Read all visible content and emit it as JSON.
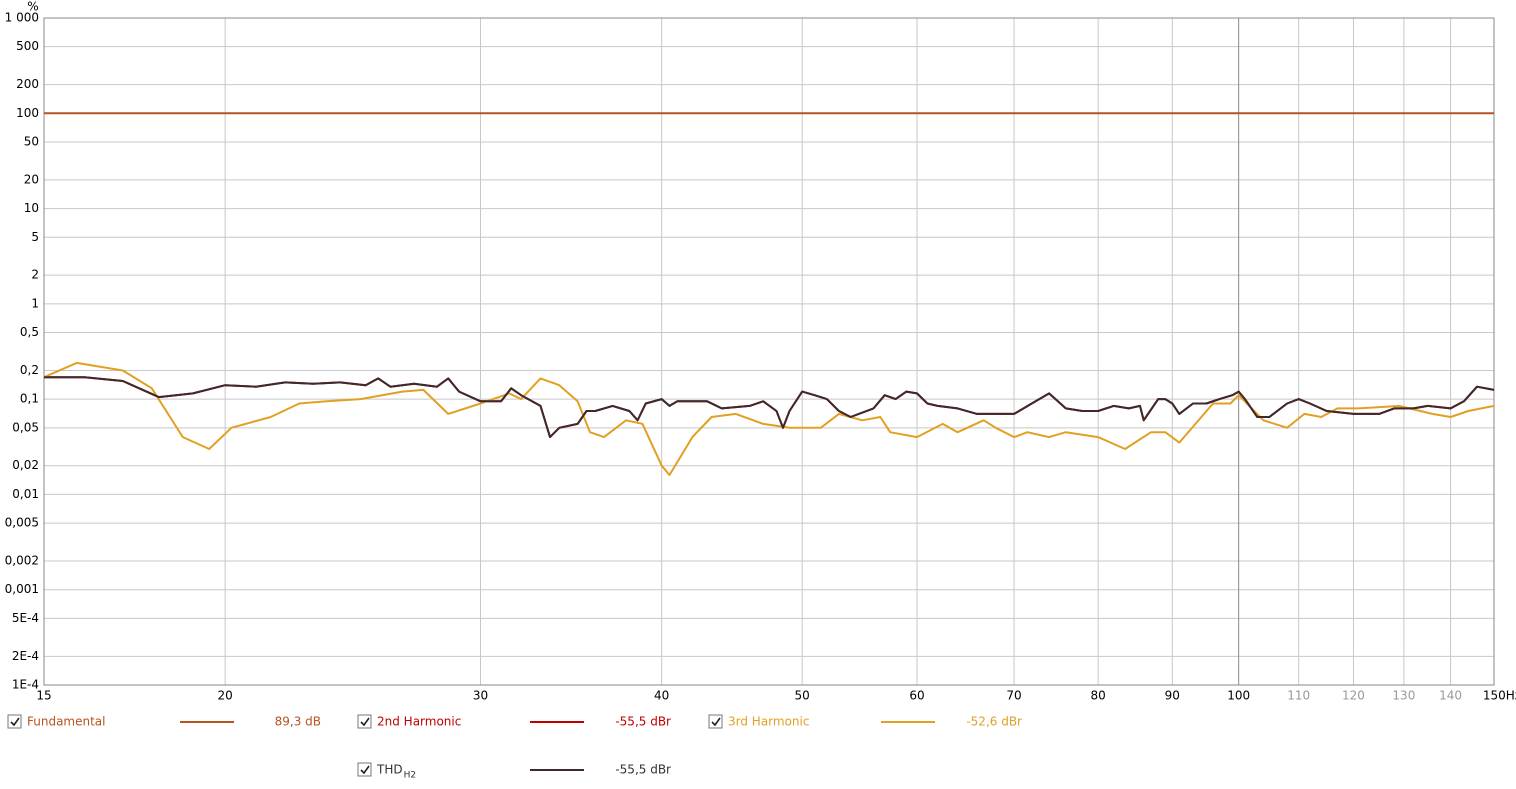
{
  "chart_data": {
    "type": "line",
    "y_label": "%",
    "log_x": true,
    "log_y": true,
    "grid": true,
    "xlim": [
      15,
      150
    ],
    "ylim": [
      0.0001,
      1000
    ],
    "xticks": [
      15,
      20,
      30,
      40,
      50,
      60,
      70,
      80,
      90,
      100,
      110,
      120,
      130,
      140,
      {
        "value": 150,
        "label": "150Hz"
      }
    ],
    "yticks": [
      {
        "value": 1000,
        "label": "1 000"
      },
      500,
      200,
      100,
      50,
      20,
      10,
      5,
      2,
      1,
      {
        "value": 0.5,
        "label": "0,5"
      },
      {
        "value": 0.2,
        "label": "0,2"
      },
      {
        "value": 0.1,
        "label": "0,1"
      },
      {
        "value": 0.05,
        "label": "0,05"
      },
      {
        "value": 0.02,
        "label": "0,02"
      },
      {
        "value": 0.01,
        "label": "0,01"
      },
      {
        "value": 0.005,
        "label": "0,005"
      },
      {
        "value": 0.002,
        "label": "0,002"
      },
      {
        "value": 0.001,
        "label": "0,001"
      },
      {
        "value": 0.0005,
        "label": "5E-4"
      },
      {
        "value": 0.0002,
        "label": "2E-4"
      },
      {
        "value": 0.0001,
        "label": "1E-4"
      }
    ],
    "series": [
      {
        "name": "Fundamental",
        "color": "#b4541e",
        "legend_value": "89,3 dB",
        "x": [
          15,
          150
        ],
        "values": [
          100,
          100
        ]
      },
      {
        "name": "2nd Harmonic",
        "color": "#c00000",
        "legend_value": "-55,5 dBr",
        "x": [
          15,
          16,
          17,
          18,
          19,
          20,
          21,
          22,
          23,
          24,
          25,
          25.5,
          26,
          27,
          28,
          28.5,
          29,
          30,
          31,
          31.5,
          32,
          33,
          33.5,
          34,
          35,
          35.5,
          36,
          37,
          38,
          38.5,
          39,
          40,
          40.5,
          41,
          43,
          44,
          46,
          47,
          48,
          48.5,
          49,
          50,
          51,
          52,
          53,
          54,
          56,
          57,
          58,
          59,
          60,
          61,
          62,
          64,
          66,
          68,
          70,
          72,
          74,
          76,
          78,
          80,
          82,
          84,
          85.5,
          86,
          88,
          89,
          90,
          91,
          93,
          95,
          97,
          99,
          100,
          101,
          103,
          105,
          108,
          110,
          112,
          115,
          120,
          125,
          128,
          132,
          135,
          140,
          143,
          146,
          150
        ],
        "values": [
          0.17,
          0.17,
          0.155,
          0.105,
          0.115,
          0.14,
          0.135,
          0.15,
          0.145,
          0.15,
          0.14,
          0.165,
          0.135,
          0.145,
          0.135,
          0.165,
          0.12,
          0.095,
          0.095,
          0.13,
          0.11,
          0.085,
          0.04,
          0.05,
          0.055,
          0.075,
          0.075,
          0.085,
          0.075,
          0.06,
          0.09,
          0.1,
          0.085,
          0.095,
          0.095,
          0.08,
          0.085,
          0.095,
          0.075,
          0.05,
          0.075,
          0.12,
          0.11,
          0.1,
          0.075,
          0.065,
          0.08,
          0.11,
          0.1,
          0.12,
          0.115,
          0.09,
          0.085,
          0.08,
          0.07,
          0.07,
          0.07,
          0.09,
          0.115,
          0.08,
          0.075,
          0.075,
          0.085,
          0.08,
          0.085,
          0.06,
          0.1,
          0.1,
          0.09,
          0.07,
          0.09,
          0.09,
          0.1,
          0.11,
          0.12,
          0.1,
          0.065,
          0.065,
          0.09,
          0.1,
          0.09,
          0.075,
          0.07,
          0.07,
          0.08,
          0.08,
          0.085,
          0.08,
          0.095,
          0.135,
          0.125
        ]
      },
      {
        "name": "3rd Harmonic",
        "color": "#e2a023",
        "legend_value": "-52,6 dBr",
        "x": [
          15,
          15.8,
          17,
          17.8,
          18.7,
          19.5,
          20.2,
          21.5,
          22.5,
          23.5,
          24.8,
          26.5,
          27.4,
          28.5,
          30,
          31.4,
          32,
          33,
          34,
          35,
          35.7,
          36.5,
          37.8,
          38.8,
          40,
          40.5,
          42,
          43.3,
          45,
          47,
          49,
          51.5,
          53,
          55,
          56.6,
          57.5,
          60,
          62.5,
          64,
          66.7,
          68,
          70,
          71.5,
          74,
          76,
          80,
          83.5,
          87,
          89,
          91,
          96,
          98.7,
          100,
          104,
          108,
          111,
          114,
          117,
          121,
          129,
          136,
          140,
          144,
          150
        ],
        "values": [
          0.17,
          0.24,
          0.2,
          0.13,
          0.04,
          0.03,
          0.05,
          0.065,
          0.09,
          0.095,
          0.1,
          0.12,
          0.125,
          0.07,
          0.09,
          0.115,
          0.1,
          0.165,
          0.14,
          0.095,
          0.045,
          0.04,
          0.06,
          0.055,
          0.02,
          0.016,
          0.04,
          0.065,
          0.07,
          0.055,
          0.05,
          0.05,
          0.07,
          0.06,
          0.065,
          0.045,
          0.04,
          0.055,
          0.045,
          0.06,
          0.05,
          0.04,
          0.045,
          0.04,
          0.045,
          0.04,
          0.03,
          0.045,
          0.045,
          0.035,
          0.09,
          0.09,
          0.11,
          0.06,
          0.05,
          0.07,
          0.065,
          0.08,
          0.08,
          0.085,
          0.07,
          0.065,
          0.075,
          0.085
        ]
      },
      {
        "name": "THD",
        "name_sub": "H2",
        "color": "#3c2a2c",
        "legend_value": "-55,5 dBr",
        "x": [
          15,
          16,
          17,
          18,
          19,
          20,
          21,
          22,
          23,
          24,
          25,
          25.5,
          26,
          27,
          28,
          28.5,
          29,
          30,
          31,
          31.5,
          32,
          33,
          33.5,
          34,
          35,
          35.5,
          36,
          37,
          38,
          38.5,
          39,
          40,
          40.5,
          41,
          43,
          44,
          46,
          47,
          48,
          48.5,
          49,
          50,
          51,
          52,
          53,
          54,
          56,
          57,
          58,
          59,
          60,
          61,
          62,
          64,
          66,
          68,
          70,
          72,
          74,
          76,
          78,
          80,
          82,
          84,
          85.5,
          86,
          88,
          89,
          90,
          91,
          93,
          95,
          97,
          99,
          100,
          101,
          103,
          105,
          108,
          110,
          112,
          115,
          120,
          125,
          128,
          132,
          135,
          140,
          143,
          146,
          150
        ],
        "values": [
          0.17,
          0.17,
          0.155,
          0.105,
          0.115,
          0.14,
          0.135,
          0.15,
          0.145,
          0.15,
          0.14,
          0.165,
          0.135,
          0.145,
          0.135,
          0.165,
          0.12,
          0.095,
          0.095,
          0.13,
          0.11,
          0.085,
          0.04,
          0.05,
          0.055,
          0.075,
          0.075,
          0.085,
          0.075,
          0.06,
          0.09,
          0.1,
          0.085,
          0.095,
          0.095,
          0.08,
          0.085,
          0.095,
          0.075,
          0.05,
          0.075,
          0.12,
          0.11,
          0.1,
          0.075,
          0.065,
          0.08,
          0.11,
          0.1,
          0.12,
          0.115,
          0.09,
          0.085,
          0.08,
          0.07,
          0.07,
          0.07,
          0.09,
          0.115,
          0.08,
          0.075,
          0.075,
          0.085,
          0.08,
          0.085,
          0.06,
          0.1,
          0.1,
          0.09,
          0.07,
          0.09,
          0.09,
          0.1,
          0.11,
          0.12,
          0.1,
          0.065,
          0.065,
          0.09,
          0.1,
          0.09,
          0.075,
          0.07,
          0.07,
          0.08,
          0.08,
          0.085,
          0.08,
          0.095,
          0.135,
          0.125
        ]
      }
    ]
  }
}
